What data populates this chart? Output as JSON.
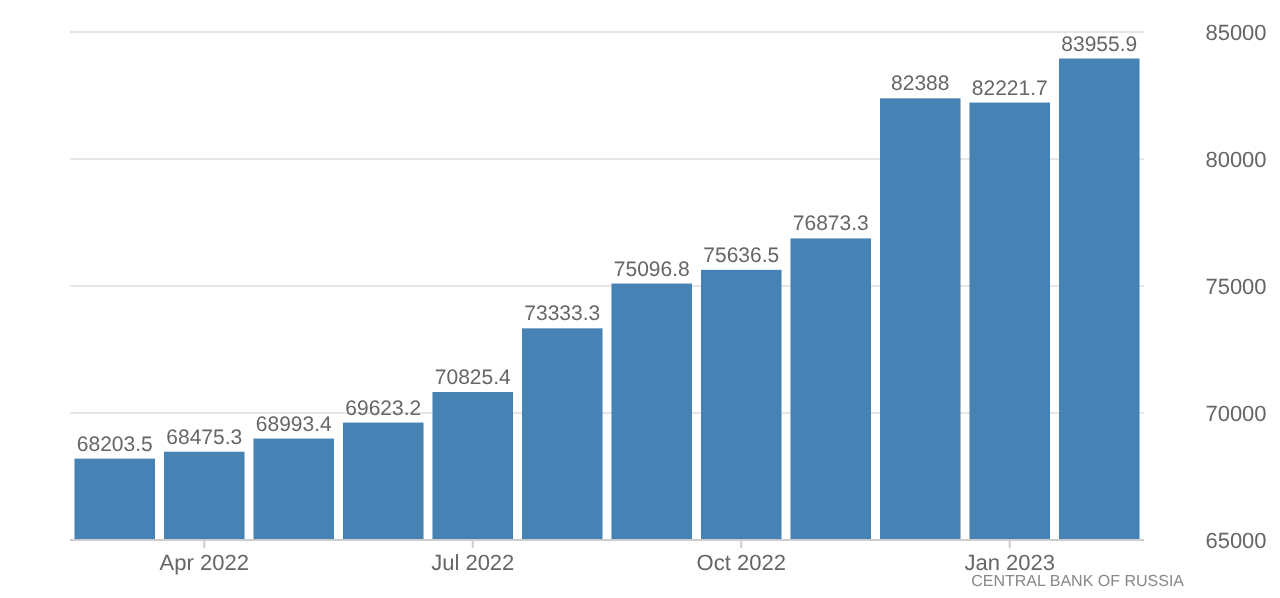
{
  "chart_data": {
    "type": "bar",
    "categories": [
      null,
      "Apr 2022",
      null,
      null,
      "Jul 2022",
      null,
      null,
      "Oct 2022",
      null,
      null,
      "Jan 2023",
      null
    ],
    "values": [
      68203.5,
      68475.3,
      68993.4,
      69623.2,
      70825.4,
      73333.3,
      75096.8,
      75636.5,
      76873.3,
      82388,
      82221.7,
      83955.9
    ],
    "value_labels": [
      "68203.5",
      "68475.3",
      "68993.4",
      "69623.2",
      "70825.4",
      "73333.3",
      "75096.8",
      "75636.5",
      "76873.3",
      "82388",
      "82221.7",
      "83955.9"
    ],
    "color": "#4682b4",
    "ylim": [
      65000,
      85000
    ],
    "yticks": [
      65000,
      70000,
      75000,
      80000,
      85000
    ],
    "grid": "y",
    "annotations": [
      "CENTRAL BANK OF RUSSIA"
    ]
  }
}
